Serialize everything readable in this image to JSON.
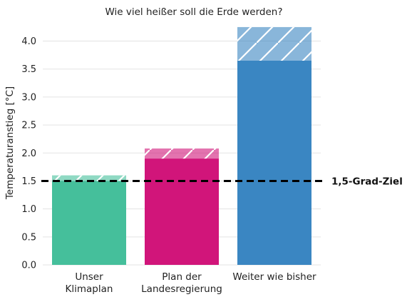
{
  "chart_data": {
    "type": "bar",
    "title": "Wie viel heißer soll die Erde werden?",
    "xlabel": "",
    "ylabel": "Temperaturanstieg [°C]",
    "ylim": [
      0,
      4.3
    ],
    "yticks": [
      "0.0",
      "0.5",
      "1.0",
      "1.5",
      "2.0",
      "2.5",
      "3.0",
      "3.5",
      "4.0"
    ],
    "grid": "horizontal",
    "categories": [
      [
        "Unser",
        "Klimaplan"
      ],
      [
        "Plan der",
        "Landesregierung"
      ],
      [
        "Weiter wie bisher"
      ]
    ],
    "values": [
      1.5,
      1.9,
      3.65
    ],
    "uncertainty_upper": [
      1.6,
      2.08,
      4.25
    ],
    "colors": [
      "#45bf9b",
      "#d1157a",
      "#3a86c2"
    ],
    "reference_line": {
      "value": 1.5,
      "label": "1,5-Grad-Ziel",
      "style": "dashed",
      "color": "#000000"
    }
  }
}
